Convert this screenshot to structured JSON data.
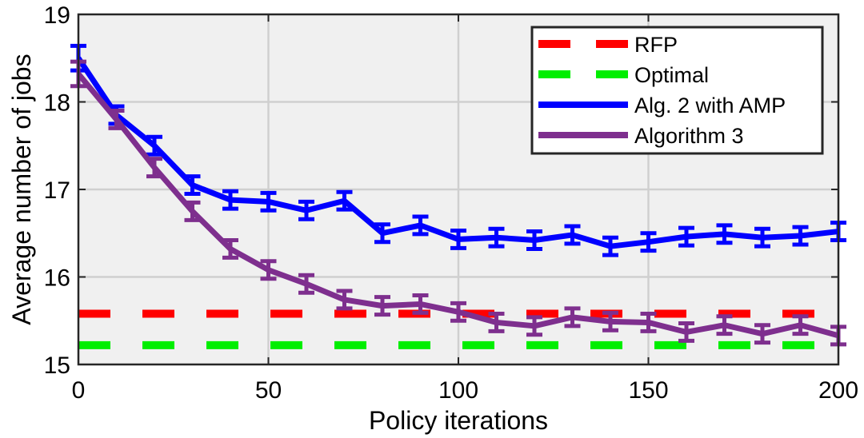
{
  "chart_data": {
    "type": "line",
    "xlabel": "Policy iterations",
    "ylabel": "Average number of jobs",
    "xlim": [
      0,
      200
    ],
    "ylim": [
      15,
      19
    ],
    "xticks": [
      0,
      50,
      100,
      150,
      200
    ],
    "yticks": [
      15,
      16,
      17,
      18,
      19
    ],
    "grid": true,
    "legend_position": "top-right",
    "series": [
      {
        "name": "RFP",
        "style": "dashed",
        "color": "#ff0000",
        "x": [
          0,
          200
        ],
        "y": [
          15.58,
          15.58
        ]
      },
      {
        "name": "Optimal",
        "style": "dashed",
        "color": "#00ee00",
        "x": [
          0,
          200
        ],
        "y": [
          15.22,
          15.22
        ]
      },
      {
        "name": "Alg. 2 with AMP",
        "style": "solid",
        "color": "#0000ff",
        "x": [
          0,
          10,
          20,
          30,
          40,
          50,
          60,
          70,
          80,
          90,
          100,
          110,
          120,
          130,
          140,
          150,
          160,
          170,
          180,
          190,
          200
        ],
        "y": [
          18.5,
          17.85,
          17.5,
          17.05,
          16.88,
          16.86,
          16.76,
          16.87,
          16.5,
          16.59,
          16.43,
          16.45,
          16.42,
          16.48,
          16.35,
          16.4,
          16.46,
          16.49,
          16.45,
          16.47,
          16.52
        ],
        "err": [
          0.14,
          0.1,
          0.1,
          0.1,
          0.1,
          0.1,
          0.1,
          0.1,
          0.1,
          0.1,
          0.1,
          0.1,
          0.1,
          0.1,
          0.1,
          0.1,
          0.1,
          0.1,
          0.1,
          0.1,
          0.1
        ]
      },
      {
        "name": "Algorithm 3",
        "style": "solid",
        "color": "#7e2f8e",
        "x": [
          0,
          10,
          20,
          30,
          40,
          50,
          60,
          70,
          80,
          90,
          100,
          110,
          120,
          130,
          140,
          150,
          160,
          170,
          180,
          190,
          200
        ],
        "y": [
          18.32,
          17.8,
          17.25,
          16.75,
          16.32,
          16.08,
          15.92,
          15.74,
          15.67,
          15.69,
          15.6,
          15.48,
          15.44,
          15.54,
          15.49,
          15.48,
          15.37,
          15.45,
          15.35,
          15.45,
          15.33
        ],
        "err": [
          0.14,
          0.1,
          0.1,
          0.1,
          0.1,
          0.1,
          0.1,
          0.1,
          0.1,
          0.1,
          0.1,
          0.1,
          0.1,
          0.1,
          0.1,
          0.1,
          0.1,
          0.1,
          0.1,
          0.1,
          0.1
        ]
      }
    ]
  }
}
